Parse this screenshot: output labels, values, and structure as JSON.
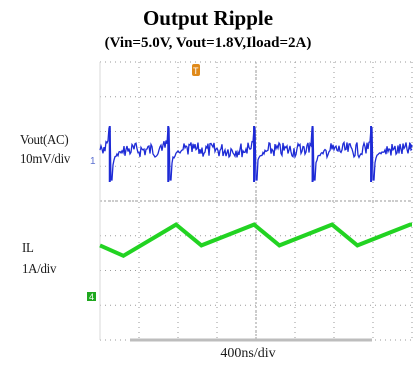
{
  "title": "Output Ripple",
  "subtitle": "(Vin=5.0V, Vout=1.8V,Iload=2A)",
  "colors": {
    "vout_trace": "#1e2bd6",
    "il_trace": "#22d322",
    "grid": "#9a9a9a",
    "trigger_marker": "#e08a1a",
    "ch4_marker": "#1fa81f"
  },
  "chart_data": {
    "type": "line",
    "title": "Output Ripple",
    "subtitle": "(Vin=5.0V, Vout=1.8V,Iload=2A)",
    "timebase": "400ns/div",
    "grid": true,
    "series": [
      {
        "name": "Vout(AC)",
        "scale": "10mV/div",
        "channel_marker": "1",
        "switching_spike_times_div": [
          0.25,
          1.75,
          3.95,
          5.45,
          6.95
        ],
        "ripple_amplitude_div": 0.18
      },
      {
        "name": "IL",
        "scale": "1A/div",
        "channel_marker": "4",
        "x_div": [
          0,
          0.6,
          1.95,
          2.6,
          3.95,
          4.6,
          5.95,
          6.6,
          7.95,
          8.0
        ],
        "y_div": [
          -0.3,
          -0.6,
          0.3,
          -0.3,
          0.3,
          -0.3,
          0.3,
          -0.3,
          0.3,
          0.3
        ]
      }
    ]
  },
  "labels": {
    "vout": "Vout(AC)",
    "vout_scale": "10mV/div",
    "il": "IL",
    "il_scale": "1A/div",
    "ch1_marker": "1",
    "ch4_marker": "4",
    "trigger_marker": "T"
  }
}
